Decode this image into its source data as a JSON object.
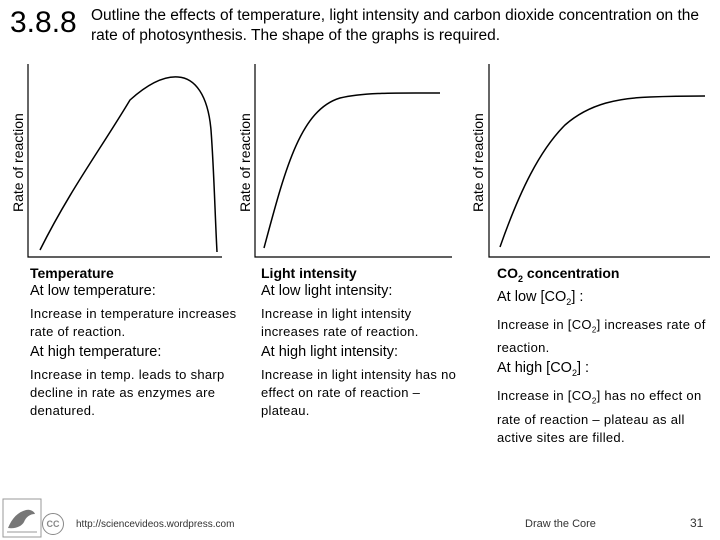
{
  "header": {
    "section_number": "3.8.8",
    "title": "Outline the effects of temperature, light intensity and carbon dioxide concentration on the rate of photosynthesis. The shape of the graphs is required."
  },
  "graphs": [
    {
      "ylabel": "Rate of reaction",
      "shape": "rise-then-sharp-decline"
    },
    {
      "ylabel": "Rate of reaction",
      "shape": "rise-then-plateau"
    },
    {
      "ylabel": "Rate of reaction",
      "shape": "rise-then-plateau"
    }
  ],
  "columns": [
    {
      "factor": "Temperature",
      "low_label": "At low temperature:",
      "low_text": "Increase in temperature increases rate of reaction.",
      "high_label": "At high temperature:",
      "high_text": "Increase in temp. leads to sharp decline in rate as enzymes are denatured."
    },
    {
      "factor": "Light intensity",
      "low_label": "At low light intensity:",
      "low_text": "Increase in light intensity increases rate of reaction.",
      "high_label": "At high light intensity:",
      "high_text": "Increase in light intensity has no effect on rate of reaction – plateau."
    },
    {
      "factor": "CO2 concentration",
      "factor_parts": [
        "CO",
        "2",
        " concentration"
      ],
      "low_label_parts": [
        "At low [CO",
        "2",
        "] :"
      ],
      "low_text_parts": [
        "Increase in [CO",
        "2",
        "] increases rate of reaction."
      ],
      "high_label_parts": [
        "At high [CO",
        "2",
        "] :"
      ],
      "high_text_parts": [
        "Increase in  [CO",
        "2",
        "] has no effect on rate of reaction – plateau as all active sites are filled."
      ]
    }
  ],
  "footer": {
    "cc_badge": "CC",
    "url": "http://sciencevideos.wordpress.com",
    "center": "Draw the Core",
    "page_number": "31"
  }
}
